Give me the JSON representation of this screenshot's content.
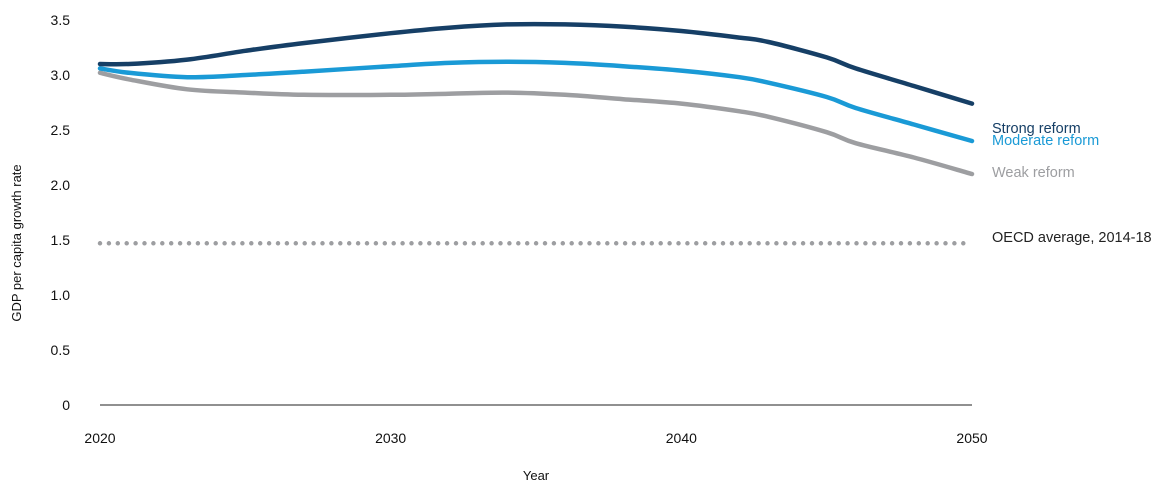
{
  "chart_data": {
    "type": "line",
    "title": "",
    "xlabel": "Year",
    "ylabel": "GDP per capita growth rate",
    "xlim": [
      2020,
      2050
    ],
    "ylim": [
      0,
      3.5
    ],
    "x_ticks": [
      "2020",
      "2030",
      "2040",
      "2050"
    ],
    "y_ticks": [
      "0",
      "0.5",
      "1.0",
      "1.5",
      "2.0",
      "2.5",
      "3.0",
      "3.5"
    ],
    "grid": false,
    "legend": "direct labels at right end of lines",
    "series": [
      {
        "name": "Strong reform",
        "color": "#163f66",
        "x": [
          2020,
          2021,
          2023,
          2025,
          2027,
          2030,
          2032,
          2034,
          2036,
          2038,
          2040,
          2042,
          2043,
          2045,
          2046,
          2048,
          2050
        ],
        "values": [
          3.1,
          3.1,
          3.14,
          3.22,
          3.29,
          3.38,
          3.43,
          3.46,
          3.46,
          3.44,
          3.4,
          3.34,
          3.3,
          3.16,
          3.06,
          2.9,
          2.74
        ]
      },
      {
        "name": "Moderate reform",
        "color": "#1a9ad6",
        "x": [
          2020,
          2021,
          2023,
          2025,
          2027,
          2030,
          2032,
          2034,
          2036,
          2038,
          2040,
          2042,
          2043,
          2045,
          2046,
          2048,
          2050
        ],
        "values": [
          3.06,
          3.02,
          2.98,
          3.0,
          3.03,
          3.08,
          3.11,
          3.12,
          3.11,
          3.08,
          3.04,
          2.98,
          2.93,
          2.8,
          2.7,
          2.55,
          2.4
        ]
      },
      {
        "name": "Weak reform",
        "color": "#9d9ea1",
        "x": [
          2020,
          2021,
          2023,
          2025,
          2027,
          2030,
          2032,
          2034,
          2036,
          2038,
          2040,
          2042,
          2043,
          2045,
          2046,
          2048,
          2050
        ],
        "values": [
          3.02,
          2.96,
          2.87,
          2.84,
          2.82,
          2.82,
          2.83,
          2.84,
          2.82,
          2.78,
          2.74,
          2.67,
          2.62,
          2.48,
          2.38,
          2.25,
          2.1
        ]
      },
      {
        "name": "OECD average, 2014-18",
        "color": "#9d9ea1",
        "style": "dotted",
        "x": [
          2020,
          2050
        ],
        "values": [
          1.47,
          1.47
        ]
      }
    ]
  }
}
